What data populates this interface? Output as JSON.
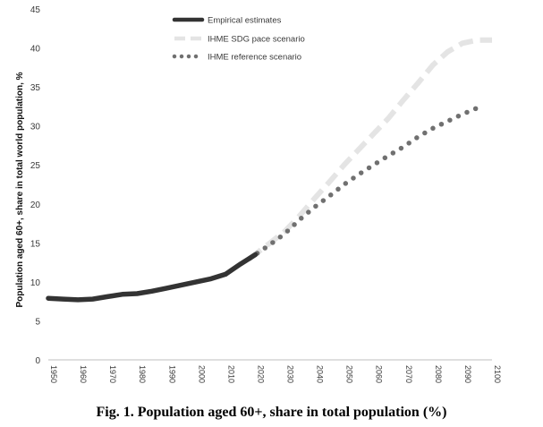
{
  "caption": "Fig. 1. Population aged 60+, share in total population (%)",
  "chart_data": {
    "type": "line",
    "ylabel": "Population aged 60+, share in total world population, %",
    "xlabel": "",
    "xlim": [
      1950,
      2100
    ],
    "ylim": [
      0,
      45
    ],
    "yticks": [
      0,
      5,
      10,
      15,
      20,
      25,
      30,
      35,
      40,
      45
    ],
    "xticks": [
      1950,
      1960,
      1970,
      1980,
      1990,
      2000,
      2010,
      2020,
      2030,
      2040,
      2050,
      2060,
      2070,
      2080,
      2090,
      2100
    ],
    "grid": false,
    "legend_position": "top-left",
    "series": [
      {
        "name": "Empirical estimates",
        "style": "solid",
        "color": "#333333",
        "x": [
          1950,
          1955,
          1960,
          1965,
          1970,
          1975,
          1980,
          1985,
          1990,
          1995,
          2000,
          2005,
          2010,
          2015,
          2020
        ],
        "values": [
          7.9,
          7.8,
          7.7,
          7.8,
          8.1,
          8.4,
          8.5,
          8.8,
          9.2,
          9.6,
          10.0,
          10.4,
          11.0,
          12.3,
          13.5
        ]
      },
      {
        "name": "IHME SDG pace scenario",
        "style": "dashed",
        "color": "#e4e4e4",
        "x": [
          2018,
          2025,
          2030,
          2035,
          2040,
          2045,
          2050,
          2055,
          2060,
          2065,
          2070,
          2075,
          2080,
          2085,
          2090,
          2095,
          2100
        ],
        "values": [
          13.0,
          15.0,
          16.5,
          18.5,
          20.7,
          22.8,
          25.0,
          27.0,
          29.0,
          31.0,
          33.3,
          35.5,
          37.8,
          39.5,
          40.6,
          41.0,
          41.0
        ]
      },
      {
        "name": "IHME reference scenario",
        "style": "dotted",
        "color": "#707070",
        "x": [
          2018,
          2025,
          2030,
          2035,
          2040,
          2045,
          2050,
          2055,
          2060,
          2065,
          2070,
          2075,
          2080,
          2085,
          2090,
          2095,
          2097
        ],
        "values": [
          13.0,
          14.8,
          16.2,
          18.0,
          19.6,
          21.0,
          22.5,
          23.8,
          25.0,
          26.2,
          27.3,
          28.6,
          29.7,
          30.6,
          31.5,
          32.3,
          32.8
        ]
      }
    ]
  }
}
